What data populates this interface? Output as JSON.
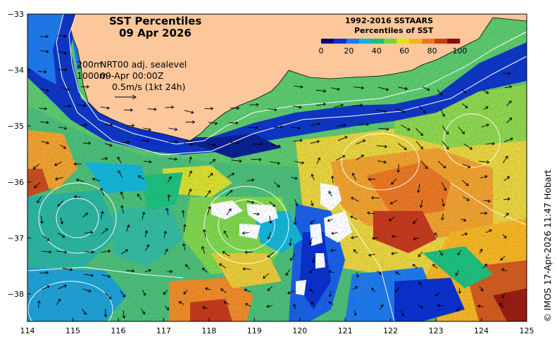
{
  "title": {
    "line1": "SST Percentiles",
    "line2": "09 Apr 2026"
  },
  "legend": {
    "title_line1": "1992-2016 SSTAARS",
    "title_line2": "Percentiles of SST",
    "ticks": [
      "0",
      "20",
      "40",
      "60",
      "80",
      "100"
    ],
    "colors": [
      "#000080",
      "#0a2fc8",
      "#1e78e6",
      "#14b4d2",
      "#1ebe78",
      "#78d23c",
      "#dce614",
      "#f5b41e",
      "#eb781e",
      "#c83c14",
      "#8c0a0a"
    ]
  },
  "annotations": {
    "contour_200": "200m",
    "contour_1000": "1000m",
    "product": "NRT00 adj. sealevel",
    "datetime": "09-Apr 00:00Z",
    "vector_scale": "0.5m/s (1kt 24h)"
  },
  "credit": "© IMOS 17-Apr-2026 11:47 Hobart",
  "axes": {
    "x_ticks": [
      "114",
      "115",
      "116",
      "117",
      "118",
      "119",
      "120",
      "121",
      "122",
      "123",
      "124",
      "125"
    ],
    "y_ticks": [
      "−33",
      "−34",
      "−35",
      "−36",
      "−37",
      "−38"
    ]
  },
  "colors": {
    "land": "#fbc79b",
    "coastline": "#000000"
  }
}
